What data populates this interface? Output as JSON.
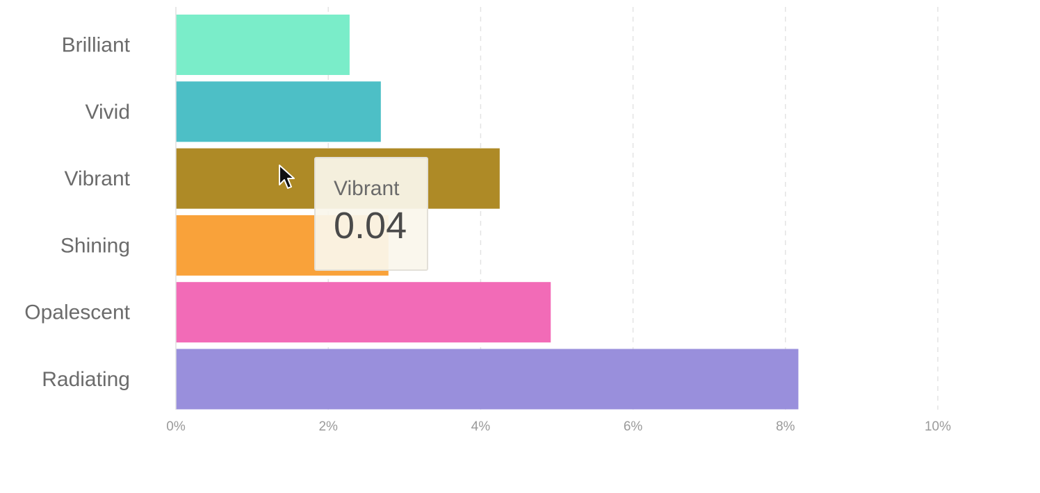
{
  "chart_data": {
    "type": "bar",
    "orientation": "horizontal",
    "categories": [
      "Brilliant",
      "Vivid",
      "Vibrant",
      "Shining",
      "Opalescent",
      "Radiating"
    ],
    "values": [
      0.0228,
      0.0269,
      0.0425,
      0.0279,
      0.0492,
      0.0817
    ],
    "colors": [
      "#7aedc9",
      "#4dbfc6",
      "#ae8a26",
      "#f9a23a",
      "#f26bb7",
      "#998fdc"
    ],
    "xlim": [
      0,
      0.1
    ],
    "x_ticks": [
      0,
      0.02,
      0.04,
      0.06,
      0.08,
      0.1
    ],
    "x_tick_labels": [
      "0%",
      "2%",
      "4%",
      "6%",
      "8%",
      "10%"
    ],
    "title": "",
    "xlabel": "",
    "ylabel": "",
    "grid": "vertical-dashed",
    "legend": false
  },
  "tooltip": {
    "label": "Vibrant",
    "value": "0.04"
  },
  "cursor": {
    "icon": "mouse-pointer-icon"
  }
}
